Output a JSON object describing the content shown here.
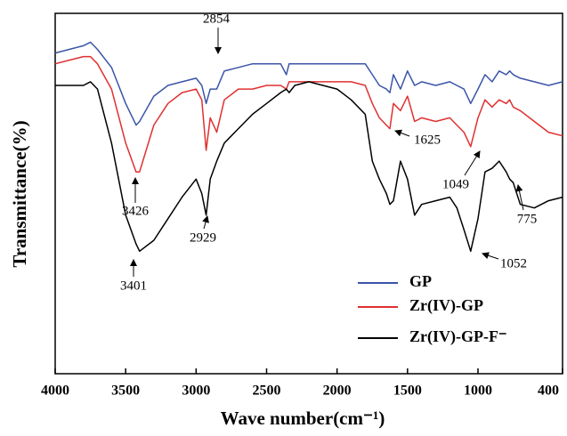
{
  "chart_data": {
    "type": "line",
    "xlabel": "Wave number(cm⁻¹)",
    "ylabel": "Transmittance(%)",
    "xlim": [
      4000,
      400
    ],
    "xticks": [
      4000,
      3500,
      3000,
      2500,
      2000,
      1500,
      1000,
      400
    ],
    "ylim": [
      0,
      100
    ],
    "legend": "lower right",
    "x": [
      4000,
      3900,
      3800,
      3750,
      3700,
      3600,
      3500,
      3426,
      3401,
      3300,
      3200,
      3100,
      3000,
      2960,
      2929,
      2900,
      2854,
      2800,
      2700,
      2600,
      2500,
      2400,
      2360,
      2340,
      2300,
      2200,
      2100,
      2000,
      1900,
      1800,
      1750,
      1700,
      1650,
      1625,
      1600,
      1550,
      1500,
      1450,
      1400,
      1300,
      1200,
      1150,
      1100,
      1052,
      1000,
      950,
      900,
      850,
      800,
      775,
      750,
      700,
      600,
      500,
      400
    ],
    "series": [
      {
        "name": "GP",
        "color": "#3a55a8",
        "values": [
          89,
          90,
          91,
          92,
          90,
          85,
          75,
          69,
          70,
          77,
          80,
          81,
          82,
          80,
          75,
          79,
          79,
          84,
          85,
          86,
          86,
          86,
          83,
          86,
          86,
          86,
          86,
          86,
          86,
          86,
          83,
          80,
          79,
          78,
          83,
          79,
          84,
          80,
          81,
          80,
          81,
          80,
          79,
          75,
          79,
          83,
          81,
          84,
          83,
          84,
          83,
          82,
          81,
          80,
          81
        ]
      },
      {
        "name": "Zr(IV)-GP",
        "color": "#e03030",
        "values": [
          86,
          87,
          88,
          88,
          86,
          79,
          64,
          56,
          56,
          69,
          75,
          78,
          79,
          76,
          62,
          71,
          67,
          76,
          79,
          79,
          80,
          80,
          79,
          81,
          81,
          81,
          81,
          81,
          81,
          80,
          75,
          71,
          69,
          68,
          75,
          73,
          77,
          70,
          71,
          70,
          71,
          69,
          67,
          63,
          71,
          76,
          74,
          76,
          75,
          76,
          74,
          73,
          70,
          67,
          66
        ]
      },
      {
        "name": "Zr(IV)-GP-F⁻",
        "color": "#000000",
        "values": [
          80,
          80,
          80,
          81,
          79,
          64,
          44,
          36,
          34,
          37,
          43,
          49,
          54,
          50,
          44,
          54,
          59,
          64,
          68,
          72,
          75,
          78,
          79,
          78,
          80,
          81,
          80,
          79,
          76,
          72,
          59,
          54,
          50,
          47,
          48,
          59,
          54,
          44,
          47,
          48,
          49,
          46,
          40,
          34,
          43,
          56,
          57,
          59,
          56,
          54,
          53,
          47,
          46,
          48,
          49
        ]
      }
    ],
    "annotations": [
      "2854",
      "3426",
      "3401",
      "2929",
      "1625",
      "1049",
      "1052",
      "775"
    ]
  }
}
